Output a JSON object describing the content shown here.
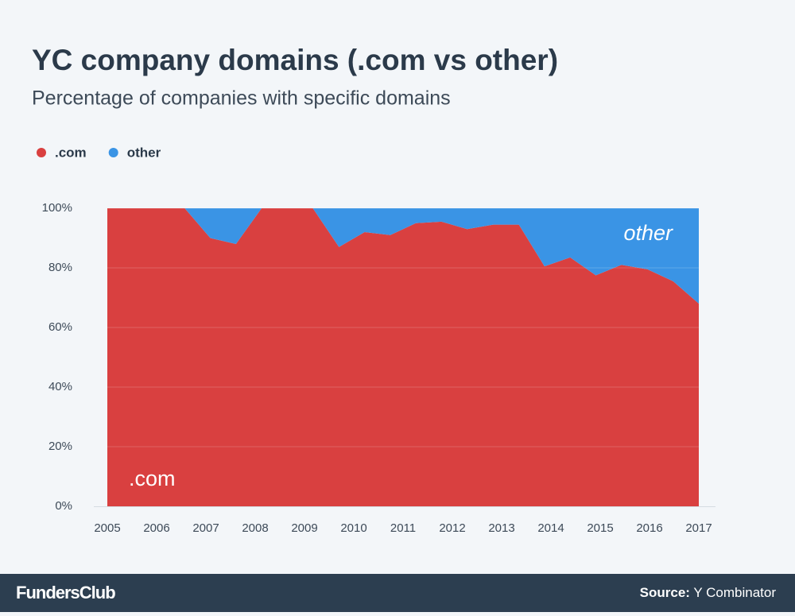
{
  "chart_data": {
    "type": "stacked_area",
    "title": "YC company domains (.com vs other)",
    "subtitle": "Percentage of companies with specific domains",
    "x": [
      2005,
      2005.52,
      2006.04,
      2006.57,
      2007.09,
      2007.61,
      2008.13,
      2008.65,
      2009.17,
      2009.7,
      2010.22,
      2010.74,
      2011.26,
      2011.78,
      2012.3,
      2012.83,
      2013.35,
      2013.87,
      2014.39,
      2014.91,
      2015.43,
      2015.96,
      2016.48,
      2017
    ],
    "series": [
      {
        "name": ".com",
        "color": "#d94040",
        "values": [
          100,
          100,
          100,
          100,
          90,
          88,
          100,
          100,
          100,
          87,
          92,
          91,
          95,
          95.5,
          93,
          94.5,
          94.5,
          80.5,
          83.5,
          77.5,
          81,
          79.5,
          75.5,
          68
        ]
      },
      {
        "name": "other",
        "color": "#3a94e5",
        "values": [
          0,
          0,
          0,
          0,
          10,
          12,
          0,
          0,
          0,
          13,
          8,
          9,
          5,
          4.5,
          7,
          5.5,
          5.5,
          19.5,
          16.5,
          22.5,
          19,
          20.5,
          24.5,
          32
        ]
      }
    ],
    "xlim": [
      2005,
      2017
    ],
    "xticks": [
      2005,
      2006,
      2007,
      2008,
      2009,
      2010,
      2011,
      2012,
      2013,
      2014,
      2015,
      2016,
      2017
    ],
    "ylim": [
      0,
      100
    ],
    "yticks": [
      {
        "value": 0,
        "label": "0%"
      },
      {
        "value": 20,
        "label": "20%"
      },
      {
        "value": 40,
        "label": "40%"
      },
      {
        "value": 60,
        "label": "60%"
      },
      {
        "value": 80,
        "label": "80%"
      },
      {
        "value": 100,
        "label": "100%"
      }
    ],
    "grid": true,
    "legend": "top-left"
  },
  "footer": {
    "brand": "FundersClub",
    "source_label": "Source:",
    "source": "Y Combinator"
  }
}
